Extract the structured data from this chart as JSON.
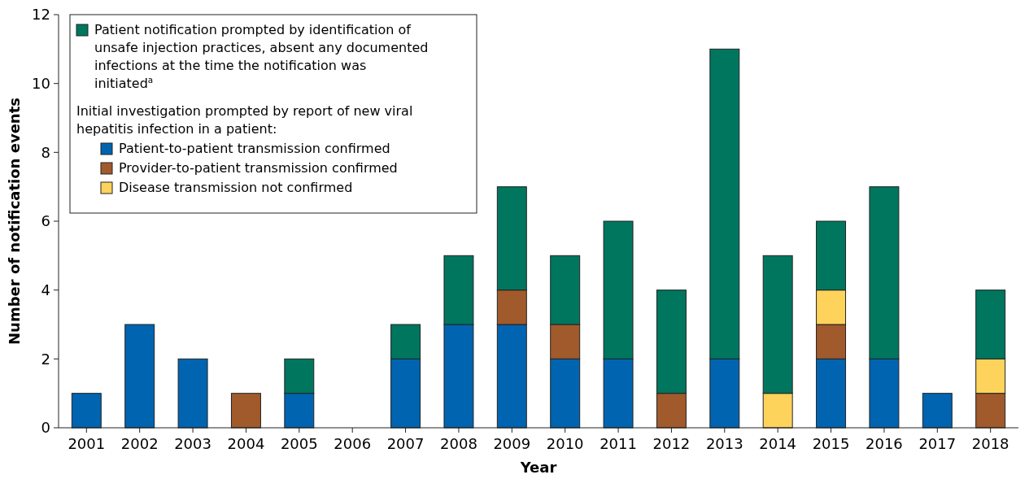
{
  "chart_data": {
    "type": "bar",
    "stacked": true,
    "xlabel": "Year",
    "ylabel": "Number of notification events",
    "categories": [
      "2001",
      "2002",
      "2003",
      "2004",
      "2005",
      "2006",
      "2007",
      "2008",
      "2009",
      "2010",
      "2011",
      "2012",
      "2013",
      "2014",
      "2015",
      "2016",
      "2017",
      "2018"
    ],
    "series": [
      {
        "name": "Patient-to-patient transmission confirmed",
        "color": "#0064b1",
        "values": [
          1,
          3,
          2,
          0,
          1,
          0,
          2,
          3,
          3,
          2,
          2,
          0,
          2,
          0,
          2,
          2,
          1,
          0
        ]
      },
      {
        "name": "Provider-to-patient transmission confirmed",
        "color": "#a15a2c",
        "values": [
          0,
          0,
          0,
          1,
          0,
          0,
          0,
          0,
          1,
          1,
          0,
          1,
          0,
          0,
          1,
          0,
          0,
          1
        ]
      },
      {
        "name": "Disease transmission not confirmed",
        "color": "#fdd35c",
        "values": [
          0,
          0,
          0,
          0,
          0,
          0,
          0,
          0,
          0,
          0,
          0,
          0,
          0,
          1,
          1,
          0,
          0,
          1
        ]
      },
      {
        "name": "Patient notification prompted by identification of unsafe injection practices, absent any documented infections at the time the notification was initiated$^{a}$",
        "color": "#00765f",
        "values": [
          0,
          0,
          0,
          0,
          1,
          0,
          1,
          2,
          3,
          2,
          4,
          3,
          9,
          4,
          2,
          5,
          0,
          2
        ]
      }
    ],
    "annotations": [
      "Initial investigation prompted by report of new viral hepatitis infection in a patient:"
    ],
    "ylim": [
      0,
      12
    ],
    "yticks": [
      0,
      2,
      4,
      6,
      8,
      10,
      12
    ],
    "grid": false,
    "legend": "top left"
  }
}
